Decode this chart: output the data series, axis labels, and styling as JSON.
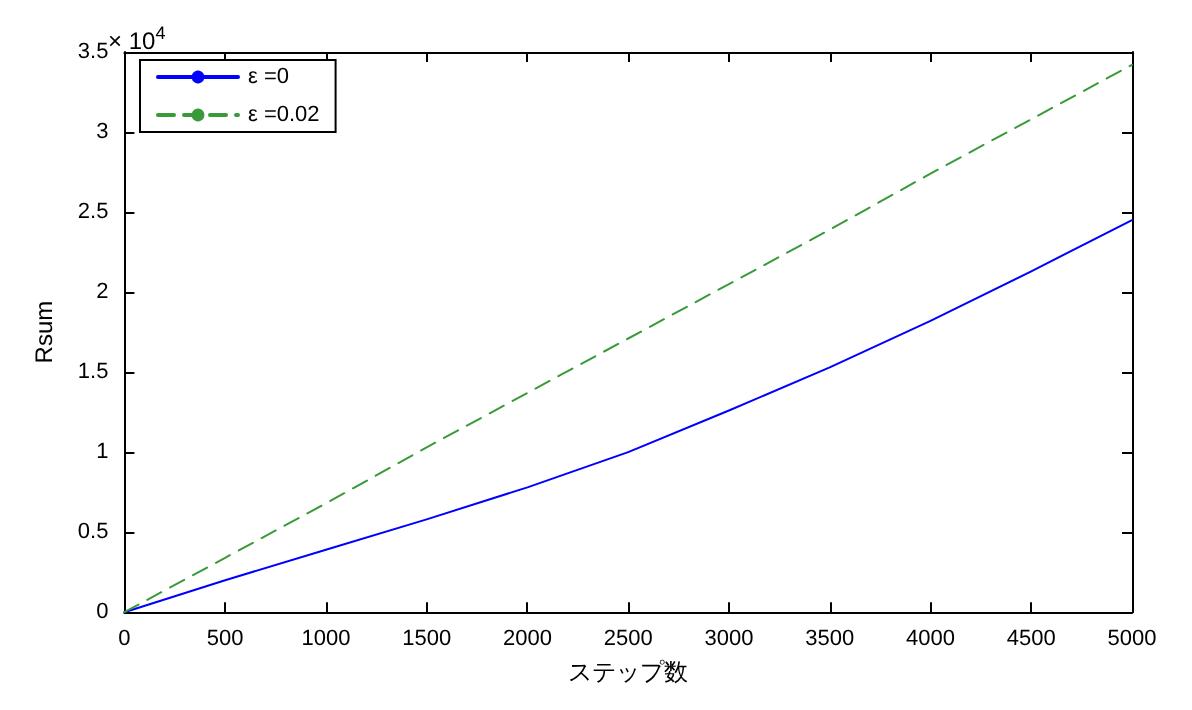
{
  "chart_data": {
    "type": "line",
    "xlabel": "ステップ数",
    "ylabel": "Rsum",
    "annotations": [
      "× 10$^{4}$"
    ],
    "x": [
      0,
      500,
      1000,
      1500,
      2000,
      2500,
      3000,
      3500,
      4000,
      4500,
      5000
    ],
    "series": [
      {
        "name": "ε =0",
        "color": "#0000ff",
        "line_style": "solid",
        "values": [
          0,
          0.2,
          0.39,
          0.58,
          0.78,
          1.0,
          1.26,
          1.53,
          1.82,
          2.13,
          2.45
        ]
      },
      {
        "name": "ε =0.02",
        "color": "#3a9a3a",
        "line_style": "dashed",
        "values": [
          0,
          0.34,
          0.68,
          1.03,
          1.37,
          1.71,
          2.05,
          2.39,
          2.74,
          3.08,
          3.42
        ]
      }
    ],
    "xlim": [
      0,
      5000
    ],
    "xticks": [
      0,
      500,
      1000,
      1500,
      2000,
      2500,
      3000,
      3500,
      4000,
      4500,
      5000
    ],
    "ylim": [
      0,
      3.5
    ],
    "yticks": [
      0,
      0.5,
      1,
      1.5,
      2,
      2.5,
      3,
      3.5
    ],
    "grid": false,
    "legend": "top left",
    "marker": "none"
  }
}
